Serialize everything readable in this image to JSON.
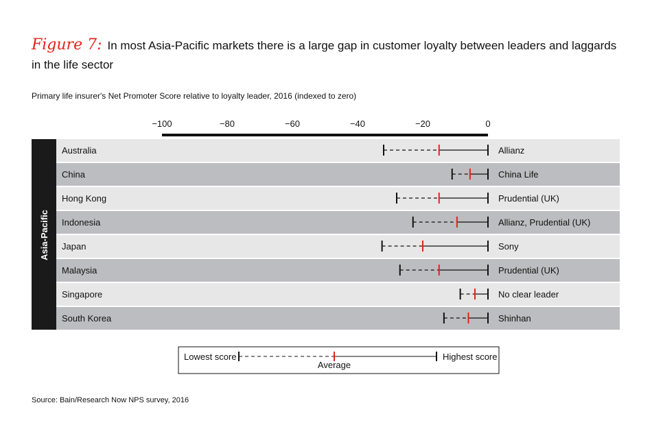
{
  "title": {
    "figure_label": "Figure 7:",
    "text": "In most Asia-Pacific markets there is a large gap in customer loyalty between leaders and laggards in the life sector"
  },
  "chart_data": {
    "type": "range",
    "title": "Primary life insurer's Net Promoter Score relative to loyalty leader, 2016 (indexed to zero)",
    "group_label": "Asia-Pacific",
    "xlim": [
      -100,
      0
    ],
    "xticks": [
      "−100",
      "−80",
      "−60",
      "−40",
      "−20",
      "0"
    ],
    "xtick_values": [
      -100,
      -80,
      -60,
      -40,
      -20,
      0
    ],
    "rows": [
      {
        "market": "Australia",
        "low": -32,
        "average": -15,
        "high": 0,
        "leader": "Allianz"
      },
      {
        "market": "China",
        "low": -11,
        "average": -5.5,
        "high": 0,
        "leader": "China Life"
      },
      {
        "market": "Hong Kong",
        "low": -28,
        "average": -15,
        "high": 0,
        "leader": "Prudential (UK)"
      },
      {
        "market": "Indonesia",
        "low": -23,
        "average": -9.5,
        "high": 0,
        "leader": "Allianz, Prudential (UK)"
      },
      {
        "market": "Japan",
        "low": -32.5,
        "average": -20,
        "high": 0,
        "leader": "Sony"
      },
      {
        "market": "Malaysia",
        "low": -27,
        "average": -15,
        "high": 0,
        "leader": "Prudential (UK)"
      },
      {
        "market": "Singapore",
        "low": -8.5,
        "average": -4,
        "high": 0,
        "leader": "No clear leader"
      },
      {
        "market": "South Korea",
        "low": -13.5,
        "average": -6,
        "high": 0,
        "leader": "Shinhan"
      }
    ],
    "legend": {
      "lowest": "Lowest score",
      "average": "Average",
      "highest": "Highest score"
    },
    "colors": {
      "average": "#e2231a",
      "row_light": "#e6e7e6",
      "row_dark": "#bcbdc0",
      "group_bar": "#1a1a1a"
    }
  },
  "source": "Source: Bain/Research Now NPS survey, 2016"
}
